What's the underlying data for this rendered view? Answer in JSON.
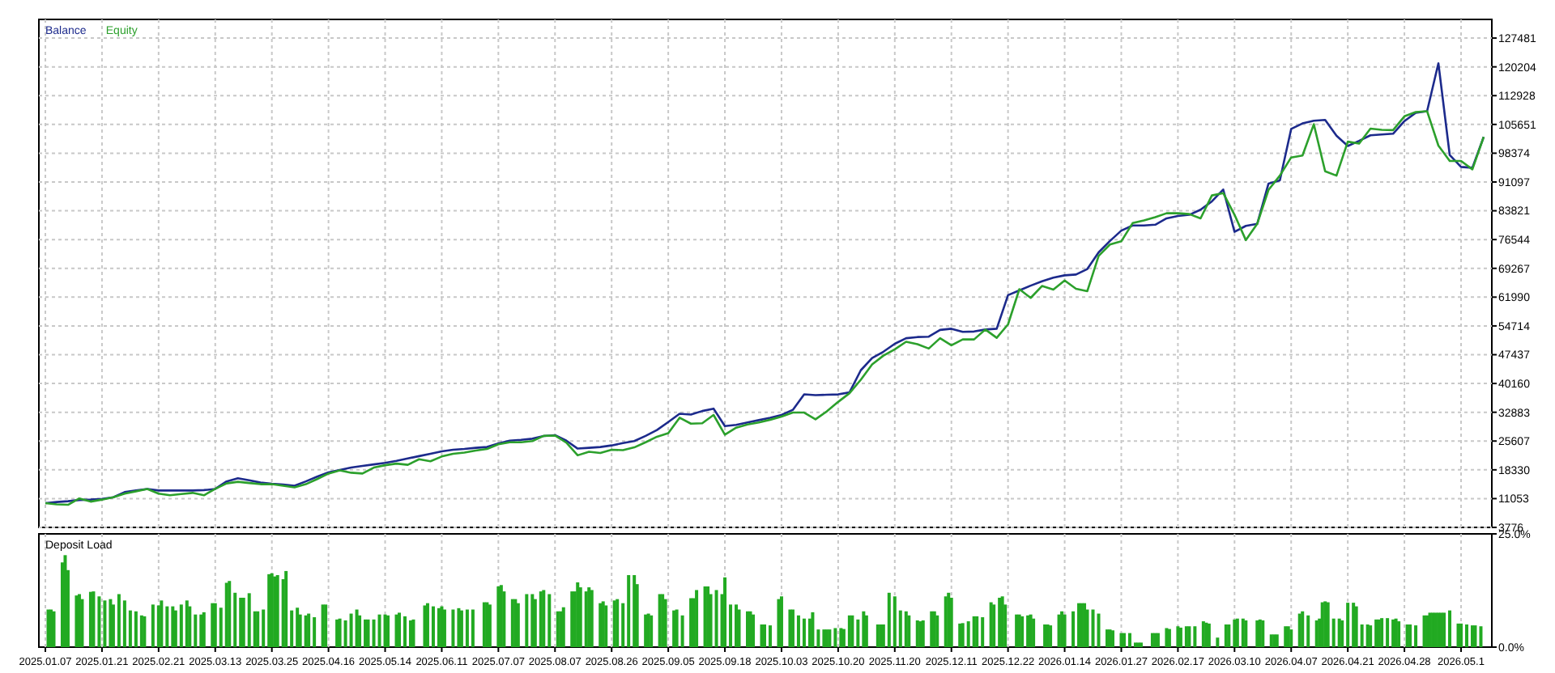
{
  "chart_data": [
    {
      "type": "line",
      "legend": "top left",
      "grid": true,
      "tick_labels": "y",
      "ylim": [
        3776,
        132200
      ],
      "categories": [
        "2025.01.07",
        null,
        null,
        null,
        null,
        "2025.01.21",
        null,
        null,
        null,
        null,
        "2025.02.21",
        null,
        null,
        null,
        null,
        "2025.03.13",
        null,
        null,
        null,
        null,
        "2025.03.25",
        null,
        null,
        null,
        null,
        "2025.04.16",
        null,
        null,
        null,
        null,
        "2025.05.14",
        null,
        null,
        null,
        null,
        "2025.06.11",
        null,
        null,
        null,
        null,
        "2025.07.07",
        null,
        null,
        null,
        null,
        "2025.08.07",
        null,
        null,
        null,
        null,
        "2025.08.26",
        null,
        null,
        null,
        null,
        "2025.09.05",
        null,
        null,
        null,
        null,
        "2025.09.18",
        null,
        null,
        null,
        null,
        "2025.10.03",
        null,
        null,
        null,
        null,
        "2025.10.20",
        null,
        null,
        null,
        null,
        "2025.11.20",
        null,
        null,
        null,
        null,
        "2025.12.11",
        null,
        null,
        null,
        null,
        "2025.12.22",
        null,
        null,
        null,
        null,
        "2026.01.14",
        null,
        null,
        null,
        null,
        "2026.01.27",
        null,
        null,
        null,
        null,
        "2026.02.17",
        null,
        null,
        null,
        null,
        "2026.03.10",
        null,
        null,
        null,
        null,
        "2026.04.07",
        null,
        null,
        null,
        null,
        "2026.04.21",
        null,
        null,
        null,
        null,
        "2026.04.28",
        null,
        null,
        null,
        null,
        "2026.05.1",
        null,
        null
      ],
      "yticks": [
        3776,
        11053,
        18330,
        25607,
        32883,
        40160,
        47437,
        54714,
        61990,
        69267,
        76544,
        83821,
        91097,
        98374,
        105651,
        112928,
        120204,
        127481
      ],
      "series": [
        {
          "name": "Balance",
          "color": "#1c2a8c",
          "values": [
            9900,
            10200,
            10400,
            10700,
            10800,
            11000,
            11400,
            12700,
            13100,
            13500,
            13100,
            13100,
            13100,
            13100,
            13200,
            13500,
            15400,
            16200,
            15700,
            15100,
            14800,
            14600,
            14300,
            15400,
            16600,
            17700,
            18300,
            18900,
            19300,
            19700,
            20100,
            20600,
            21200,
            21800,
            22400,
            23000,
            23400,
            23600,
            23900,
            24100,
            25000,
            25700,
            25900,
            26200,
            26900,
            27100,
            25700,
            23700,
            23900,
            24100,
            24500,
            25100,
            25600,
            26900,
            28400,
            30400,
            32500,
            32300,
            33200,
            33800,
            29400,
            29700,
            30300,
            30900,
            31500,
            32200,
            33500,
            37400,
            37200,
            37300,
            37400,
            37900,
            43500,
            46600,
            48200,
            50200,
            51600,
            51900,
            52000,
            53700,
            54000,
            53200,
            53300,
            53800,
            54000,
            62500,
            63700,
            64900,
            66000,
            66900,
            67500,
            67700,
            69100,
            73300,
            76200,
            78800,
            80100,
            80100,
            80300,
            81900,
            82500,
            82800,
            84100,
            86200,
            89200,
            78500,
            80000,
            80500,
            90700,
            91500,
            104500,
            105900,
            106600,
            106800,
            102800,
            100200,
            101500,
            102900,
            103100,
            103300,
            106500,
            108600,
            109000,
            121100,
            97900,
            94900,
            94700,
            102500
          ]
        },
        {
          "name": "Equity",
          "color": "#2ca02c",
          "values": [
            9900,
            9600,
            9500,
            11100,
            10300,
            10800,
            11400,
            12300,
            12900,
            13500,
            12300,
            11900,
            12200,
            12500,
            11900,
            13500,
            14900,
            15300,
            15000,
            14700,
            14700,
            14300,
            13900,
            14700,
            16000,
            17400,
            18200,
            17600,
            17400,
            18900,
            19500,
            19900,
            19600,
            21000,
            20500,
            21700,
            22400,
            22700,
            23200,
            23600,
            24800,
            25300,
            25300,
            25600,
            26900,
            27000,
            25200,
            22000,
            22900,
            22600,
            23400,
            23300,
            24000,
            25300,
            26700,
            27600,
            31500,
            30000,
            30100,
            32200,
            27200,
            29000,
            29800,
            30300,
            31000,
            31800,
            32800,
            32800,
            31100,
            33100,
            35500,
            37700,
            41100,
            45000,
            47200,
            48800,
            50700,
            50100,
            49000,
            51600,
            49800,
            51300,
            51300,
            53800,
            51700,
            55100,
            64000,
            61800,
            64800,
            63900,
            66200,
            64100,
            63500,
            72400,
            75300,
            76100,
            80700,
            81400,
            82200,
            83200,
            83200,
            83000,
            81900,
            87700,
            88300,
            82800,
            76400,
            80500,
            89100,
            92700,
            97300,
            97800,
            105700,
            93800,
            92700,
            101300,
            100800,
            104600,
            104300,
            104200,
            107700,
            108800,
            109000,
            100300,
            96400,
            96400,
            94300,
            102500
          ]
        }
      ]
    },
    {
      "type": "bar",
      "title": "Deposit Load",
      "grid": "x",
      "color": "#22aa22",
      "ylim": [
        0,
        25
      ],
      "yticks": [
        {
          "value": 0,
          "label": "0.0%"
        },
        {
          "value": 25,
          "label": "25.0%"
        }
      ],
      "categories": [
        "2025.01.07",
        null,
        null,
        null,
        null,
        null,
        null,
        null,
        null,
        null,
        null,
        null,
        null,
        null,
        null,
        null,
        null,
        null,
        null,
        null,
        "2025.01.21",
        null,
        null,
        null,
        null,
        null,
        null,
        null,
        null,
        null,
        null,
        null,
        null,
        null,
        null,
        null,
        null,
        null,
        null,
        null,
        "2025.02.21",
        null,
        null,
        null,
        null,
        null,
        null,
        null,
        null,
        null,
        null,
        null,
        null,
        null,
        null,
        null,
        null,
        null,
        null,
        null,
        "2025.03.13",
        null,
        null,
        null,
        null,
        null,
        null,
        null,
        null,
        null,
        null,
        null,
        null,
        null,
        null,
        null,
        null,
        null,
        null,
        null,
        "2025.03.25",
        null,
        null,
        null,
        null,
        null,
        null,
        null,
        null,
        null,
        null,
        null,
        null,
        null,
        null,
        null,
        null,
        null,
        null,
        null,
        "2025.04.16",
        null,
        null,
        null,
        null,
        null,
        null,
        null,
        null,
        null,
        null,
        null,
        null,
        null,
        null,
        null,
        null,
        null,
        null,
        null,
        "2025.05.14",
        null,
        null,
        null,
        null,
        null,
        null,
        null,
        null,
        null,
        null,
        null,
        null,
        null,
        null,
        null,
        null,
        null,
        null,
        null,
        "2025.06.11",
        null,
        null,
        null,
        null,
        null,
        null,
        null,
        null,
        null,
        null,
        null,
        null,
        null,
        null,
        null,
        null,
        null,
        null,
        null,
        "2025.07.07",
        null,
        null,
        null,
        null,
        null,
        null,
        null,
        null,
        null,
        null,
        null,
        null,
        null,
        null,
        null,
        null,
        null,
        null,
        null,
        "2025.08.07",
        null,
        null,
        null,
        null,
        null,
        null,
        null,
        null,
        null,
        null,
        null,
        null,
        null,
        null,
        null,
        null,
        null,
        null,
        null,
        "2025.08.26",
        null,
        null,
        null,
        null,
        null,
        null,
        null,
        null,
        null,
        null,
        null,
        null,
        null,
        null,
        null,
        null,
        null,
        null,
        null,
        "2025.09.05",
        null,
        null,
        null,
        null,
        null,
        null,
        null,
        null,
        null,
        null,
        null,
        null,
        null,
        null,
        null,
        null,
        null,
        null,
        null,
        "2025.09.18",
        null,
        null,
        null,
        null,
        null,
        null,
        null,
        null,
        null,
        null,
        null,
        null,
        null,
        null,
        null,
        null,
        null,
        null,
        null,
        "2025.10.03",
        null,
        null,
        null,
        null,
        null,
        null,
        null,
        null,
        null,
        null,
        null,
        null,
        null,
        null,
        null,
        null,
        null,
        null,
        null,
        "2025.10.20",
        null,
        null,
        null,
        null,
        null,
        null,
        null,
        null,
        null,
        null,
        null,
        null,
        null,
        null,
        null,
        null,
        null,
        null,
        null,
        "2025.11.20",
        null,
        null,
        null,
        null,
        null,
        null,
        null,
        null,
        null,
        null,
        null,
        null,
        null,
        null,
        null,
        null,
        null,
        null,
        null,
        "2025.12.11",
        null,
        null,
        null,
        null,
        null,
        null,
        null,
        null,
        null,
        null,
        null,
        null,
        null,
        null,
        null,
        null,
        null,
        null,
        null,
        "2025.12.22",
        null,
        null,
        null,
        null,
        null,
        null,
        null,
        null,
        null,
        null,
        null,
        null,
        null,
        null,
        null,
        null,
        null,
        null,
        null,
        "2026.01.14",
        null,
        null,
        null,
        null,
        null,
        null,
        null,
        null,
        null,
        null,
        null,
        null,
        null,
        null,
        null,
        null,
        null,
        null,
        null,
        "2026.01.27",
        null,
        null,
        null,
        null,
        null,
        null,
        null,
        null,
        null,
        null,
        null,
        null,
        null,
        null,
        null,
        null,
        null,
        null,
        null,
        "2026.02.17",
        null,
        null,
        null,
        null,
        null,
        null,
        null,
        null,
        null,
        null,
        null,
        null,
        null,
        null,
        null,
        null,
        null,
        null,
        null,
        "2026.03.10",
        null,
        null,
        null,
        null,
        null,
        null,
        null,
        null,
        null,
        null,
        null,
        null,
        null,
        null,
        null,
        null,
        null,
        null,
        null,
        "2026.04.07",
        null,
        null,
        null,
        null,
        null,
        null,
        null,
        null,
        null,
        null,
        null,
        null,
        null,
        null,
        null,
        null,
        null,
        null,
        null,
        "2026.04.21",
        null,
        null,
        null,
        null,
        null,
        null,
        null,
        null,
        null,
        null,
        null,
        null,
        null,
        null,
        null,
        null,
        null,
        null,
        null,
        "2026.04.28",
        null,
        null,
        null,
        null,
        null,
        null,
        null,
        null,
        null,
        null,
        null,
        null,
        null,
        null,
        null,
        null,
        null,
        null,
        null,
        "2026.05.1",
        null,
        null,
        null,
        null,
        null,
        null,
        null,
        null,
        null,
        null
      ],
      "values": [
        null,
        8.3,
        8.3,
        7.9,
        null,
        null,
        18.7,
        20.3,
        17.0,
        null,
        null,
        11.4,
        11.7,
        10.6,
        null,
        null,
        12.2,
        12.3,
        null,
        11.2,
        null,
        10.3,
        null,
        10.6,
        9.4,
        null,
        11.7,
        null,
        10.3,
        null,
        8.1,
        null,
        7.9,
        null,
        7.0,
        6.8,
        null,
        null,
        9.4,
        null,
        9.2,
        10.3,
        null,
        9.0,
        null,
        9.0,
        8.1,
        null,
        9.4,
        null,
        10.3,
        9.0,
        null,
        7.2,
        null,
        7.2,
        7.7,
        null,
        null,
        9.7,
        9.7,
        null,
        8.7,
        null,
        14.2,
        14.6,
        null,
        12.0,
        null,
        10.9,
        10.9,
        null,
        11.9,
        null,
        7.9,
        7.9,
        null,
        8.3,
        null,
        16.1,
        16.3,
        15.6,
        15.9,
        null,
        15.0,
        16.8,
        null,
        8.1,
        null,
        8.7,
        7.2,
        null,
        7.0,
        7.4,
        null,
        6.6,
        null,
        null,
        9.4,
        9.4,
        null,
        null,
        null,
        6.1,
        6.3,
        null,
        5.9,
        null,
        7.4,
        null,
        8.3,
        7.0,
        null,
        6.1,
        6.1,
        null,
        6.1,
        null,
        7.2,
        null,
        7.2,
        7.0,
        null,
        null,
        7.2,
        7.6,
        null,
        6.8,
        null,
        5.9,
        6.1,
        null,
        null,
        null,
        9.2,
        9.7,
        null,
        9.0,
        null,
        8.6,
        9.0,
        8.3,
        null,
        null,
        8.3,
        null,
        8.6,
        8.1,
        null,
        8.3,
        null,
        8.3,
        null,
        null,
        null,
        9.9,
        9.9,
        9.4,
        null,
        null,
        13.4,
        13.7,
        12.3,
        null,
        null,
        10.6,
        10.6,
        9.7,
        null,
        null,
        11.7,
        null,
        11.7,
        10.6,
        null,
        12.3,
        12.6,
        null,
        11.7,
        null,
        null,
        7.9,
        7.9,
        8.8,
        null,
        null,
        12.3,
        12.3,
        14.3,
        13.2,
        null,
        12.3,
        13.2,
        12.6,
        null,
        null,
        9.7,
        10.1,
        9.2,
        null,
        null,
        10.3,
        10.6,
        null,
        9.7,
        null,
        15.9,
        null,
        15.9,
        13.9,
        null,
        null,
        7.2,
        7.4,
        7.0,
        null,
        null,
        11.7,
        11.7,
        10.6,
        null,
        null,
        8.1,
        8.3,
        null,
        7.0,
        null,
        null,
        10.8,
        10.8,
        12.6,
        null,
        null,
        13.4,
        13.4,
        11.7,
        null,
        12.6,
        null,
        11.7,
        15.4,
        null,
        9.4,
        null,
        9.4,
        8.3,
        null,
        null,
        7.9,
        7.9,
        7.2,
        null,
        null,
        5.0,
        5.0,
        null,
        4.8,
        null,
        null,
        10.6,
        11.2,
        null,
        null,
        8.3,
        8.3,
        null,
        7.0,
        null,
        6.3,
        null,
        6.3,
        7.7,
        null,
        3.9,
        null,
        3.9,
        3.9,
        3.9,
        null,
        4.2,
        null,
        4.2,
        4.0,
        null,
        7.0,
        7.0,
        null,
        6.1,
        null,
        7.9,
        7.0,
        null,
        null,
        null,
        5.0,
        5.0,
        5.0,
        null,
        12.0,
        null,
        11.2,
        null,
        8.1,
        null,
        7.9,
        7.0,
        null,
        null,
        5.9,
        5.7,
        5.9,
        null,
        null,
        7.9,
        7.9,
        7.0,
        null,
        null,
        11.2,
        12.0,
        10.9,
        null,
        null,
        5.2,
        5.3,
        null,
        5.7,
        null,
        6.8,
        6.8,
        null,
        6.6,
        null,
        null,
        9.9,
        9.4,
        null,
        10.9,
        11.2,
        9.4,
        null,
        null,
        null,
        7.2,
        7.2,
        6.8,
        null,
        7.0,
        7.2,
        6.3,
        null,
        null,
        null,
        5.0,
        5.0,
        4.8,
        null,
        null,
        7.2,
        7.9,
        7.2,
        null,
        null,
        7.9,
        null,
        9.7,
        9.7,
        9.7,
        8.3,
        null,
        8.3,
        null,
        7.4,
        null,
        null,
        3.9,
        3.9,
        3.7,
        null,
        null,
        3.1,
        3.1,
        null,
        3.1,
        null,
        1.0,
        1.0,
        1.0,
        null,
        null,
        null,
        3.1,
        3.1,
        3.1,
        null,
        null,
        4.2,
        4.0,
        null,
        null,
        4.6,
        4.3,
        null,
        4.6,
        4.6,
        null,
        4.6,
        null,
        null,
        5.7,
        5.4,
        5.2,
        null,
        null,
        2.1,
        null,
        null,
        5.0,
        5.0,
        null,
        6.1,
        6.3,
        null,
        6.3,
        5.9,
        null,
        null,
        null,
        5.9,
        6.1,
        5.9,
        null,
        null,
        2.8,
        2.8,
        2.8,
        null,
        null,
        4.6,
        4.6,
        3.9,
        null,
        null,
        7.4,
        7.9,
        null,
        7.0,
        null,
        null,
        5.9,
        6.3,
        9.9,
        10.1,
        9.9,
        null,
        6.3,
        null,
        6.3,
        5.9,
        null,
        9.8,
        null,
        9.8,
        9.0,
        null,
        5.0,
        null,
        5.0,
        4.8,
        null,
        6.1,
        6.1,
        6.4,
        null,
        6.4,
        null,
        6.1,
        6.3,
        5.7,
        null,
        null,
        5.0,
        5.0,
        null,
        4.8,
        null,
        null,
        7.0,
        7.0,
        7.6,
        7.6,
        7.6,
        7.6,
        7.6,
        7.6,
        null,
        8.1,
        null,
        null,
        5.2,
        5.2,
        null,
        5.0,
        null,
        4.8,
        4.8,
        null,
        4.6,
        null,
        null,
        null
      ]
    }
  ]
}
